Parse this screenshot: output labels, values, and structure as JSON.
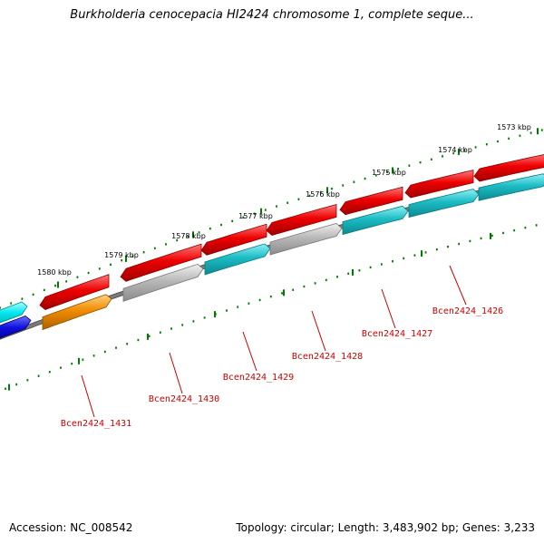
{
  "title": "Burkholderia cenocepacia HI2424 chromosome 1, complete seque...",
  "footer": {
    "accession": "Accession: NC_008542",
    "topology": "Topology: circular; Length: 3,483,902 bp; Genes: 3,233"
  },
  "scale_labels": [
    "1573 kbp",
    "1574 kbp",
    "1575 kbp",
    "1576 kbp",
    "1577 kbp",
    "1578 kbp",
    "1579 kbp",
    "1580 kbp"
  ],
  "gene_labels": [
    "Bcen2424_1426",
    "Bcen2424_1427",
    "Bcen2424_1428",
    "Bcen2424_1429",
    "Bcen2424_1430",
    "Bcen2424_1431"
  ],
  "colors": {
    "forward_cds": "#e00000",
    "reverse_cds_teal": "#1ab8c0",
    "reverse_cds_grey": "#b4b4b4",
    "reverse_cds_orange": "#f08c00",
    "cyan_feature": "#00e8f0",
    "blue_feature": "#1010e0",
    "backbone": "#7a7a7a",
    "tick": "#007a00",
    "label": "#cc0000"
  }
}
